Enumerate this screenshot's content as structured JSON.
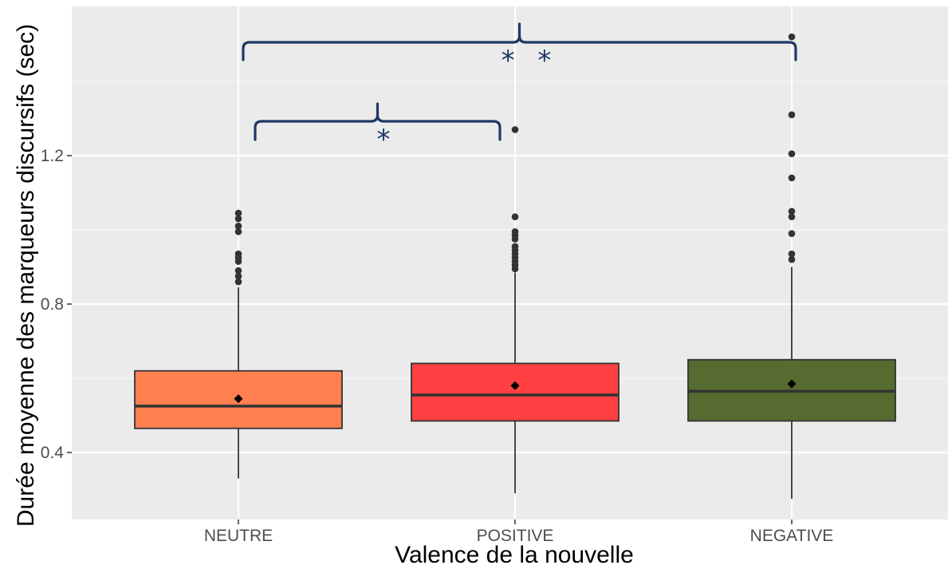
{
  "chart_data": {
    "type": "box",
    "title": "",
    "xlabel": "Valence de la nouvelle",
    "ylabel": "Durée moyenne des marqueurs discursifs (sec)",
    "ylim": [
      0.2,
      1.56
    ],
    "yticks": [
      0.4,
      0.8,
      1.2
    ],
    "ytick_labels": [
      "0.4",
      "0.8",
      "1.2"
    ],
    "grid": true,
    "legend": "none",
    "categories": [
      "NEUTRE",
      "POSITIVE",
      "NEGATIVE"
    ],
    "boxes": [
      {
        "name": "NEUTRE",
        "color": "#ff7f50",
        "whisker_low": 0.33,
        "q1": 0.465,
        "median": 0.525,
        "q3": 0.62,
        "whisker_high": 0.845,
        "mean": 0.545,
        "outliers": [
          0.86,
          0.875,
          0.89,
          0.915,
          0.925,
          0.935,
          0.995,
          1.01,
          1.03,
          1.045
        ]
      },
      {
        "name": "POSITIVE",
        "color": "#ff3f42",
        "whisker_low": 0.29,
        "q1": 0.485,
        "median": 0.555,
        "q3": 0.64,
        "whisker_high": 0.885,
        "mean": 0.58,
        "outliers": [
          0.895,
          0.905,
          0.915,
          0.925,
          0.935,
          0.945,
          0.955,
          0.975,
          0.985,
          0.995,
          1.035,
          1.27
        ]
      },
      {
        "name": "NEGATIVE",
        "color": "#556b2f",
        "whisker_low": 0.275,
        "q1": 0.485,
        "median": 0.565,
        "q3": 0.65,
        "whisker_high": 0.9,
        "mean": 0.585,
        "outliers": [
          0.92,
          0.935,
          0.99,
          1.035,
          1.05,
          1.14,
          1.205,
          1.31,
          1.52
        ]
      }
    ],
    "annotations": [
      {
        "from": "NEUTRE",
        "to": "POSITIVE",
        "label": "*"
      },
      {
        "from": "NEUTRE",
        "to": "NEGATIVE",
        "label": "* *"
      }
    ]
  }
}
